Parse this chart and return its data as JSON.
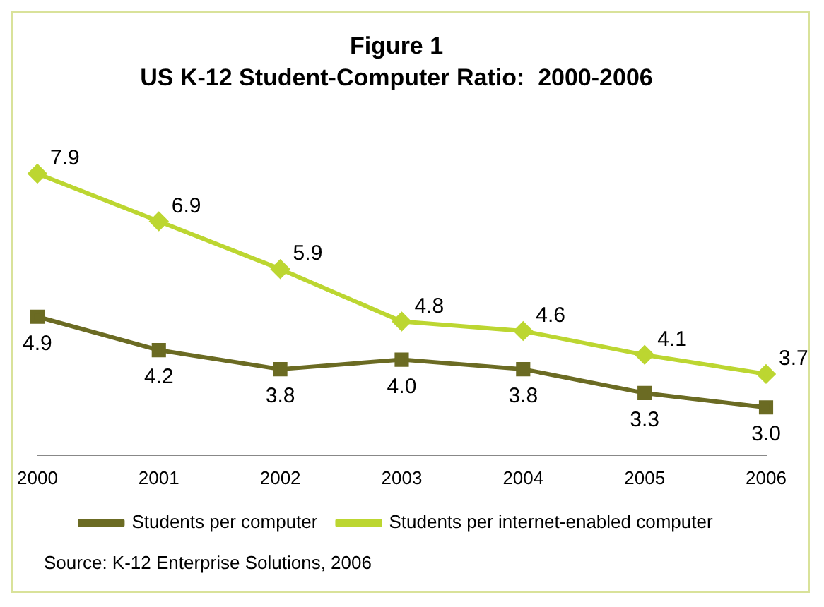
{
  "chart_data": {
    "type": "line",
    "title": "Figure 1",
    "subtitle": "US K-12 Student-Computer Ratio:  2000-2006",
    "categories": [
      "2000",
      "2001",
      "2002",
      "2003",
      "2004",
      "2005",
      "2006"
    ],
    "series": [
      {
        "name": "Students per computer",
        "color": "#6b6b23",
        "values": [
          4.9,
          4.2,
          3.8,
          4.0,
          3.8,
          3.3,
          3.0
        ],
        "value_labels": [
          "4.9",
          "4.2",
          "3.8",
          "4.0",
          "3.8",
          "3.3",
          "3.0"
        ],
        "marker": "square"
      },
      {
        "name": "Students per internet-enabled computer",
        "color": "#bcd631",
        "values": [
          7.9,
          6.9,
          5.9,
          4.8,
          4.6,
          4.1,
          3.7
        ],
        "value_labels": [
          "7.9",
          "6.9",
          "5.9",
          "4.8",
          "4.6",
          "4.1",
          "3.7"
        ],
        "marker": "diamond"
      }
    ],
    "grid": false,
    "legend": "bottom",
    "line_style": "solid",
    "annotations": [
      "Source: K-12 Enterprise Solutions, 2006"
    ]
  }
}
